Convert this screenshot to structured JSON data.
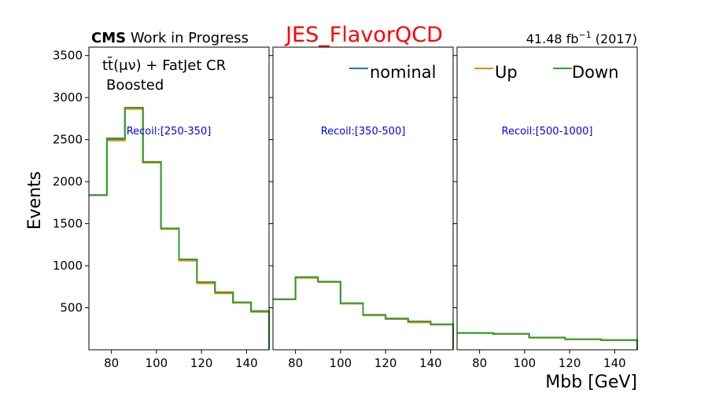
{
  "header": {
    "cms_bold": "CMS",
    "cms_rest": " Work in Progress",
    "title": "JES_FlavorQCD",
    "lumi_value": "41.48 fb",
    "lumi_exp": "−1",
    "lumi_year": " (2017)"
  },
  "annotations": {
    "region_line1": "tt̄(μν) + FatJet CR",
    "region_line2": "Boosted"
  },
  "legend": {
    "nominal": "nominal",
    "up": "Up",
    "down": "Down"
  },
  "colors": {
    "nominal": "#1f77b4",
    "up": "#ff7f0e",
    "down": "#2ca02c",
    "title": "#ff0000",
    "recoil": "#0000ff"
  },
  "chart_data": {
    "type": "line",
    "drawstyle": "steps",
    "ylabel": "Events",
    "xlabel": "Mbb [GeV]",
    "ylim": [
      0,
      3600
    ],
    "yticks": [
      500,
      1000,
      1500,
      2000,
      2500,
      3000,
      3500
    ],
    "xlim": [
      70,
      150
    ],
    "xticks": [
      80,
      100,
      120,
      140
    ],
    "grid": false,
    "legend_placement": "top-right",
    "panels": [
      {
        "label": "Recoil:[250-350]",
        "bin_edges": [
          70,
          78,
          86,
          94,
          102,
          110,
          118,
          126,
          134,
          142,
          150
        ],
        "series": [
          {
            "name": "nominal",
            "values": [
              1840,
              2500,
              2870,
              2230,
              1440,
              1070,
              800,
              680,
              560,
              460
            ]
          },
          {
            "name": "Up",
            "values": [
              1840,
              2490,
              2865,
              2225,
              1435,
              1060,
              790,
              670,
              560,
              450
            ]
          },
          {
            "name": "Down",
            "values": [
              1840,
              2515,
              2880,
              2235,
              1445,
              1075,
              805,
              685,
              565,
              460
            ]
          }
        ]
      },
      {
        "label": "Recoil:[350-500]",
        "bin_edges": [
          70,
          80,
          90,
          100,
          110,
          120,
          130,
          140,
          150
        ],
        "series": [
          {
            "name": "nominal",
            "values": [
              600,
              860,
              810,
              550,
              415,
              370,
              335,
              300
            ]
          },
          {
            "name": "Up",
            "values": [
              600,
              855,
              805,
              550,
              410,
              365,
              325,
              300
            ]
          },
          {
            "name": "Down",
            "values": [
              600,
              865,
              810,
              555,
              415,
              372,
              338,
              303
            ]
          }
        ]
      },
      {
        "label": "Recoil:[500-1000]",
        "bin_edges": [
          70,
          86,
          102,
          118,
          134,
          150
        ],
        "series": [
          {
            "name": "nominal",
            "values": [
              200,
              190,
              145,
              125,
              115
            ]
          },
          {
            "name": "Up",
            "values": [
              200,
              188,
              143,
              123,
              113
            ]
          },
          {
            "name": "Down",
            "values": [
              200,
              191,
              146,
              126,
              116
            ]
          }
        ]
      }
    ]
  }
}
